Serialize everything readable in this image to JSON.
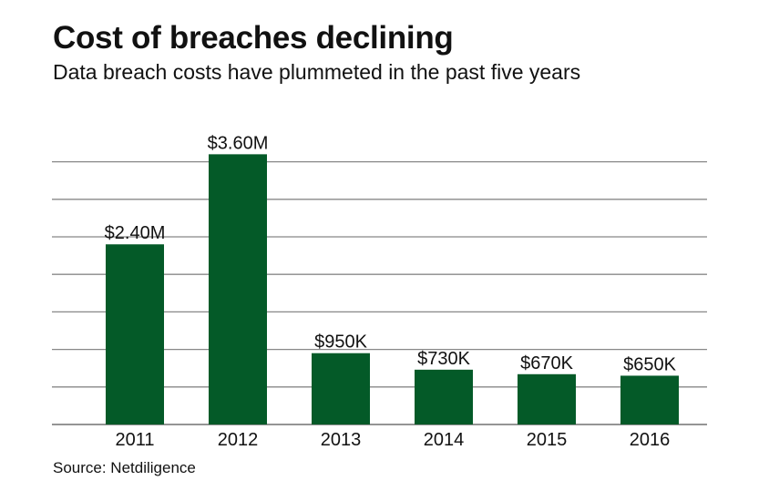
{
  "title": "Cost of breaches declining",
  "subtitle": "Data breach costs have plummeted in the past five years",
  "source": "Source: Netdiligence",
  "chart_data": {
    "type": "bar",
    "title": "Cost of breaches declining",
    "subtitle": "Data breach costs have plummeted in the past five years",
    "categories": [
      "2011",
      "2012",
      "2013",
      "2014",
      "2015",
      "2016"
    ],
    "values": [
      2400000,
      3600000,
      950000,
      730000,
      670000,
      650000
    ],
    "data_labels": [
      "$2.40M",
      "$3.60M",
      "$950K",
      "$730K",
      "$670K",
      "$650K"
    ],
    "xlabel": "",
    "ylabel": "",
    "ylim": [
      0,
      3500000
    ],
    "grid": true,
    "grid_step": 500000,
    "y_tick_labels_shown": false,
    "bar_color": "#045a28",
    "grid_color": "#888888"
  }
}
